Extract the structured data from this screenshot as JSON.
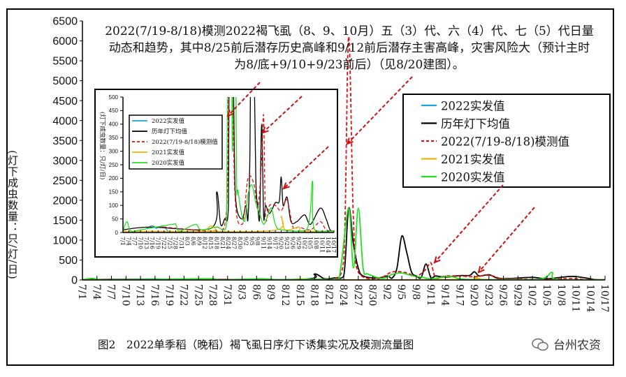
{
  "chart_data": {
    "type": "line",
    "title": "2022(7/19-8/18)模测2022褐飞虱（8、9、10月）五（3）代、六（4）代、七（5）代日量动态和趋势，其中8/25前后潜存历史高峰和9/12前后潜存主害高峰，灾害风险大（预计主时为8/底+9/10+9/23前后）（见8/20建图）。",
    "caption": "图2　2022单季稻（晚稻）褐飞虱日序灯下诱集实况及模测流量图",
    "watermark": "台州农资",
    "ylabel": "(灯下成虫数量：只/灯/日)",
    "xlabel": "",
    "ylim": [
      0,
      6500
    ],
    "yticks": [
      0,
      500,
      1000,
      1500,
      2000,
      2500,
      3000,
      3500,
      4000,
      4500,
      5000,
      5500,
      6000,
      6500
    ],
    "xticks": [
      "7/1",
      "7/4",
      "7/7",
      "7/10",
      "7/13",
      "7/16",
      "7/19",
      "7/22",
      "7/25",
      "7/28",
      "7/31",
      "8/3",
      "8/6",
      "8/9",
      "8/12",
      "8/15",
      "8/18",
      "8/21",
      "8/24",
      "8/27",
      "8/30",
      "9/2",
      "9/5",
      "9/8",
      "9/11",
      "9/14",
      "9/17",
      "9/20",
      "9/23",
      "9/26",
      "9/29",
      "10/2",
      "10/5",
      "10/8",
      "10/11",
      "10/14",
      "10/17"
    ],
    "legend_position": "top-right",
    "series": [
      {
        "name": "2022实发值",
        "color": "#1ea0e0",
        "dash": false,
        "points": [
          [
            "7/13",
            15
          ],
          [
            "7/16",
            25
          ],
          [
            "7/18",
            15
          ],
          [
            "7/19",
            20
          ],
          [
            "7/22",
            20
          ],
          [
            "7/24",
            5
          ]
        ]
      },
      {
        "name": "历年灯下均值",
        "color": "#000000",
        "dash": false,
        "points": [
          [
            "7/1",
            10
          ],
          [
            "7/15",
            20
          ],
          [
            "8/15",
            15
          ],
          [
            "8/18",
            150
          ],
          [
            "8/20",
            30
          ],
          [
            "8/22",
            50
          ],
          [
            "8/24",
            100
          ],
          [
            "8/25",
            1800
          ],
          [
            "8/26",
            900
          ],
          [
            "8/27",
            300
          ],
          [
            "8/28",
            100
          ],
          [
            "8/31",
            50
          ],
          [
            "9/2",
            100
          ],
          [
            "9/3",
            50
          ],
          [
            "9/4",
            300
          ],
          [
            "9/5",
            1100
          ],
          [
            "9/6",
            700
          ],
          [
            "9/7",
            200
          ],
          [
            "9/8",
            100
          ],
          [
            "9/9",
            60
          ],
          [
            "9/10",
            400
          ],
          [
            "9/11",
            60
          ],
          [
            "9/12",
            100
          ],
          [
            "9/14",
            70
          ],
          [
            "9/17",
            110
          ],
          [
            "9/19",
            115
          ],
          [
            "9/20",
            205
          ],
          [
            "9/21",
            100
          ],
          [
            "9/23",
            130
          ],
          [
            "9/25",
            40
          ],
          [
            "9/28",
            40
          ],
          [
            "10/2",
            65
          ],
          [
            "10/5",
            30
          ],
          [
            "10/10",
            90
          ],
          [
            "10/13",
            50
          ],
          [
            "10/15",
            10
          ],
          [
            "10/17",
            5
          ]
        ]
      },
      {
        "name": "2022(7/19-8/18)模测值",
        "color": "#e01010",
        "dash": true,
        "points": [
          [
            "7/19",
            20
          ],
          [
            "7/22",
            20
          ],
          [
            "8/15",
            5
          ],
          [
            "8/18",
            20
          ],
          [
            "8/22",
            20
          ],
          [
            "8/24",
            500
          ],
          [
            "8/25",
            6100
          ],
          [
            "8/26",
            1500
          ],
          [
            "8/27",
            200
          ],
          [
            "8/31",
            30
          ],
          [
            "9/3",
            200
          ],
          [
            "9/6",
            180
          ],
          [
            "9/8",
            90
          ],
          [
            "9/10",
            270
          ],
          [
            "9/11",
            430
          ],
          [
            "9/12",
            60
          ],
          [
            "9/14",
            100
          ],
          [
            "9/17",
            100
          ],
          [
            "9/20",
            80
          ],
          [
            "9/23",
            120
          ],
          [
            "9/26",
            20
          ],
          [
            "9/29",
            20
          ],
          [
            "10/5",
            10
          ],
          [
            "10/10",
            40
          ],
          [
            "10/13",
            10
          ],
          [
            "10/17",
            5
          ]
        ]
      },
      {
        "name": "2021实发值",
        "color": "#f5b000",
        "dash": false,
        "points": [
          [
            "7/1",
            5
          ],
          [
            "8/14",
            5
          ],
          [
            "8/15",
            25
          ],
          [
            "8/16",
            5
          ],
          [
            "9/18",
            10
          ],
          [
            "9/20",
            60
          ],
          [
            "9/22",
            10
          ],
          [
            "9/29",
            20
          ],
          [
            "10/1",
            5
          ],
          [
            "10/17",
            5
          ]
        ]
      },
      {
        "name": "2020实发值",
        "color": "#22dd22",
        "dash": false,
        "points": [
          [
            "7/1",
            5
          ],
          [
            "7/3",
            40
          ],
          [
            "7/5",
            5
          ],
          [
            "7/10",
            10
          ],
          [
            "7/26",
            30
          ],
          [
            "7/28",
            30
          ],
          [
            "7/30",
            5
          ],
          [
            "8/7",
            30
          ],
          [
            "8/10",
            10
          ],
          [
            "8/18",
            20
          ],
          [
            "8/21",
            10
          ],
          [
            "8/23",
            30
          ],
          [
            "8/25",
            1800
          ],
          [
            "8/26",
            300
          ],
          [
            "8/27",
            1800
          ],
          [
            "8/28",
            300
          ],
          [
            "8/29",
            150
          ],
          [
            "9/1",
            40
          ],
          [
            "9/3",
            140
          ],
          [
            "9/5",
            175
          ],
          [
            "9/7",
            110
          ],
          [
            "9/9",
            70
          ],
          [
            "9/11",
            30
          ],
          [
            "9/13",
            60
          ],
          [
            "9/15",
            90
          ],
          [
            "9/17",
            30
          ],
          [
            "9/20",
            10
          ],
          [
            "10/3",
            10
          ],
          [
            "10/6",
            190
          ],
          [
            "10/7",
            10
          ],
          [
            "10/17",
            5
          ]
        ]
      }
    ],
    "inset": {
      "ylabel": "(灯下成虫数量：只/灯/日)",
      "ylim": [
        0,
        500
      ],
      "yticks": [
        0,
        50,
        100,
        150,
        200,
        250,
        300,
        350,
        400,
        450,
        500
      ],
      "legend_position": "top-left"
    }
  }
}
